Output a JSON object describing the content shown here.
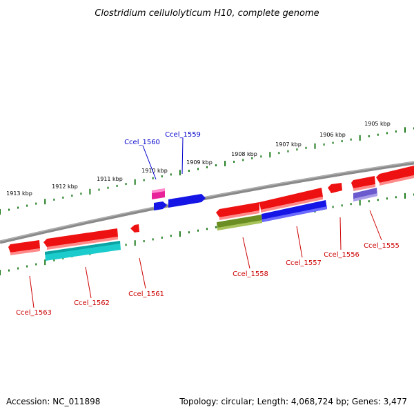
{
  "title": "Clostridium cellulolyticum H10, complete genome",
  "footer": {
    "accession": "Accession: NC_011898",
    "summary": "Topology: circular; Length: 4,068,724 bp; Genes: 3,477"
  },
  "scale_labels": [
    "1913 kbp",
    "1912 kbp",
    "1911 kbp",
    "1910 kbp",
    "1909 kbp",
    "1908 kbp",
    "1907 kbp",
    "1906 kbp",
    "1905 kbp"
  ],
  "gene_labels": {
    "top": [
      "Ccel_1560",
      "Ccel_1559"
    ],
    "bottom": [
      "Ccel_1563",
      "Ccel_1562",
      "Ccel_1561",
      "Ccel_1558",
      "Ccel_1557",
      "Ccel_1556",
      "Ccel_1555"
    ]
  },
  "colors": {
    "backbone": "#808080",
    "scale_ticks": "#1a7a1a",
    "red_gene": "#ee1111",
    "top_label": "#0000cc",
    "bottom_label": "#cc0000",
    "magenta": "#e8219a",
    "blue": "#1515e6",
    "cyan": "#1ccccc",
    "olive": "#6b8e23",
    "purple": "#6a5acd"
  }
}
